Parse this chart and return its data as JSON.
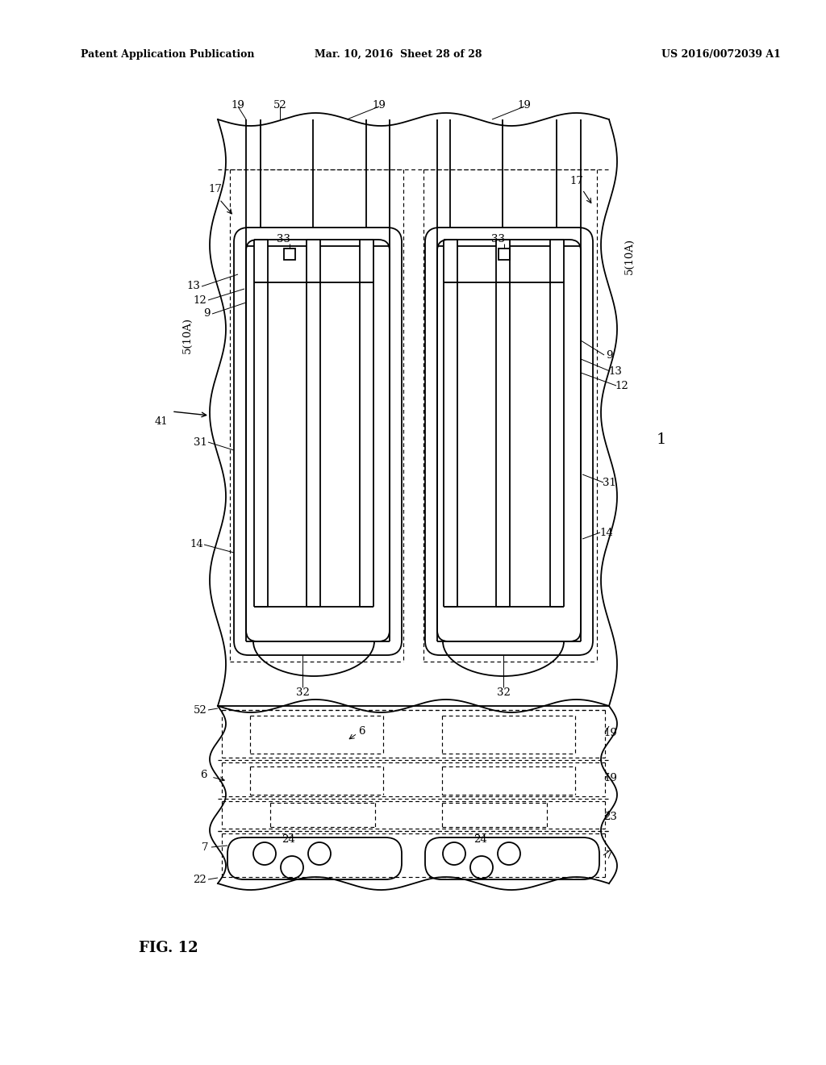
{
  "background_color": "#ffffff",
  "header_left": "Patent Application Publication",
  "header_center": "Mar. 10, 2016  Sheet 28 of 28",
  "header_right": "US 2016/0072039 A1",
  "figure_label": "FIG. 12",
  "line_color": "#000000"
}
